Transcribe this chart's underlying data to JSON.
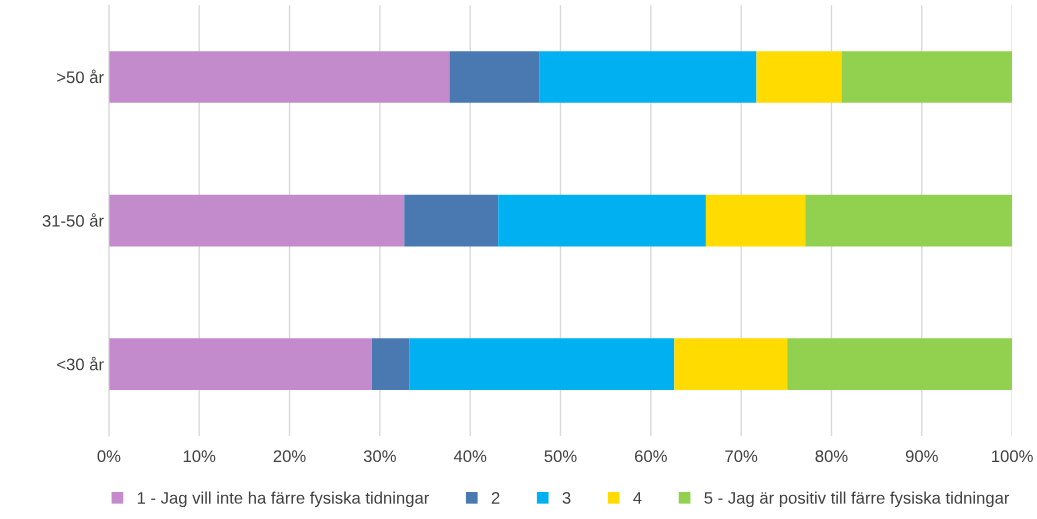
{
  "chart_data": {
    "type": "bar",
    "orientation": "horizontal",
    "stacked": true,
    "categories": [
      ">50 år",
      "31-50 år",
      "<30 år"
    ],
    "series": [
      {
        "name": "1 - Jag vill inte ha färre fysiska tidningar",
        "color": "#c38bcb",
        "values": [
          37.7,
          32.7,
          29.1
        ]
      },
      {
        "name": "2",
        "color": "#4a78b0",
        "values": [
          10.0,
          10.4,
          4.2
        ]
      },
      {
        "name": "3",
        "color": "#00b0f0",
        "values": [
          24.0,
          23.0,
          29.3
        ]
      },
      {
        "name": "4",
        "color": "#ffdb00",
        "values": [
          9.4,
          11.0,
          12.5
        ]
      },
      {
        "name": "5 - Jag är positiv till färre fysiska tidningar",
        "color": "#92d050",
        "values": [
          18.9,
          22.9,
          24.9
        ]
      }
    ],
    "xlim": [
      0,
      100
    ],
    "xticks": [
      {
        "value": 0,
        "label": "0%"
      },
      {
        "value": 10,
        "label": "10%"
      },
      {
        "value": 20,
        "label": "20%"
      },
      {
        "value": 30,
        "label": "30%"
      },
      {
        "value": 40,
        "label": "40%"
      },
      {
        "value": 50,
        "label": "50%"
      },
      {
        "value": 60,
        "label": "60%"
      },
      {
        "value": 70,
        "label": "70%"
      },
      {
        "value": 80,
        "label": "80%"
      },
      {
        "value": 90,
        "label": "90%"
      },
      {
        "value": 100,
        "label": "100%"
      }
    ],
    "grid": "x",
    "legend": "bottom"
  }
}
